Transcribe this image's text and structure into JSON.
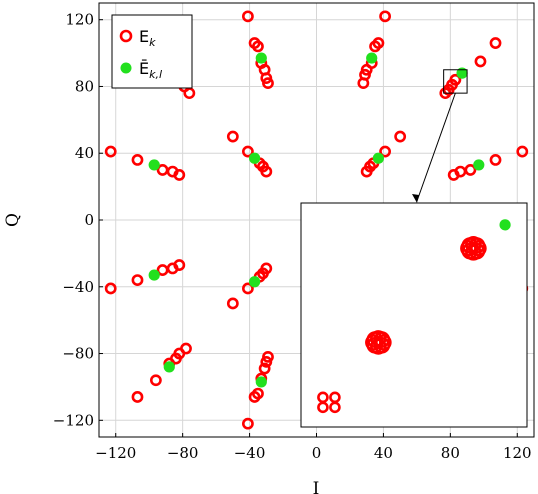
{
  "chart_data": {
    "type": "scatter",
    "xlabel": "I",
    "ylabel": "Q",
    "xlim": [
      -130,
      130
    ],
    "ylim": [
      -130,
      130
    ],
    "xticks": [
      "−120",
      "−80",
      "−40",
      "0",
      "40",
      "80",
      "120"
    ],
    "yticks": [
      "−120",
      "−80",
      "−40",
      "0",
      "40",
      "80",
      "120"
    ],
    "xtick_values": [
      -120,
      -80,
      -40,
      0,
      40,
      80,
      120
    ],
    "ytick_values": [
      -120,
      -80,
      -40,
      0,
      40,
      80,
      120
    ],
    "grid": true,
    "legend_position": "top-left",
    "series": [
      {
        "name": "E_k",
        "legend_main": "E",
        "legend_sub": "k",
        "marker": "open-circle",
        "color": "#ff0000",
        "points": [
          [
            -41,
            122
          ],
          [
            -37,
            106
          ],
          [
            -35,
            104
          ],
          [
            -33,
            94
          ],
          [
            -31,
            90
          ],
          [
            -30,
            85
          ],
          [
            -29,
            82
          ],
          [
            41,
            122
          ],
          [
            37,
            106
          ],
          [
            35,
            104
          ],
          [
            33,
            94
          ],
          [
            30,
            90
          ],
          [
            29,
            87
          ],
          [
            28,
            82
          ],
          [
            -123,
            41
          ],
          [
            -107,
            36
          ],
          [
            -92,
            30
          ],
          [
            -86,
            29
          ],
          [
            -82,
            27
          ],
          [
            -50,
            50
          ],
          [
            -41,
            41
          ],
          [
            -34,
            34
          ],
          [
            -32,
            32
          ],
          [
            -30,
            29
          ],
          [
            123,
            41
          ],
          [
            107,
            36
          ],
          [
            92,
            30
          ],
          [
            86,
            29
          ],
          [
            82,
            27
          ],
          [
            50,
            50
          ],
          [
            41,
            41
          ],
          [
            34,
            34
          ],
          [
            32,
            32
          ],
          [
            30,
            29
          ],
          [
            -76,
            76
          ],
          [
            -79,
            80
          ],
          [
            -80,
            83
          ],
          [
            77,
            76
          ],
          [
            79,
            78
          ],
          [
            81,
            81
          ],
          [
            83,
            84
          ],
          [
            98,
            95
          ],
          [
            107,
            106
          ],
          [
            -123,
            -41
          ],
          [
            -107,
            -36
          ],
          [
            -92,
            -30
          ],
          [
            -86,
            -29
          ],
          [
            -82,
            -27
          ],
          [
            -50,
            -50
          ],
          [
            -41,
            -41
          ],
          [
            -34,
            -34
          ],
          [
            -32,
            -32
          ],
          [
            -30,
            -29
          ],
          [
            -107,
            -106
          ],
          [
            -96,
            -96
          ],
          [
            -88,
            -86
          ],
          [
            -84,
            -83
          ],
          [
            -82,
            -80
          ],
          [
            -78,
            -77
          ],
          [
            -41,
            -122
          ],
          [
            -37,
            -106
          ],
          [
            -35,
            -104
          ],
          [
            -33,
            -95
          ],
          [
            -31,
            -89
          ],
          [
            -30,
            -85
          ],
          [
            -29,
            -82
          ],
          [
            123,
            -41
          ]
        ]
      },
      {
        "name": "Ē_{k,l}",
        "legend_main": "Ē",
        "legend_sub": "k,l",
        "marker": "filled-circle",
        "color": "#22e01e",
        "points": [
          [
            -33,
            97
          ],
          [
            33,
            97
          ],
          [
            87,
            88
          ],
          [
            -97,
            33
          ],
          [
            -37,
            37
          ],
          [
            37,
            37
          ],
          [
            97,
            33
          ],
          [
            -97,
            -33
          ],
          [
            -37,
            -37
          ],
          [
            -88,
            -88
          ],
          [
            -33,
            -97
          ]
        ]
      }
    ],
    "inset": {
      "source_xlim": [
        76,
        90
      ],
      "source_ylim": [
        76,
        90
      ],
      "red_clusters": [
        [
          0.04,
          0.08,
          4
        ],
        [
          0.32,
          0.36,
          8
        ],
        [
          0.8,
          0.84,
          8
        ]
      ],
      "green_point": [
        0.96,
        0.96
      ]
    }
  }
}
